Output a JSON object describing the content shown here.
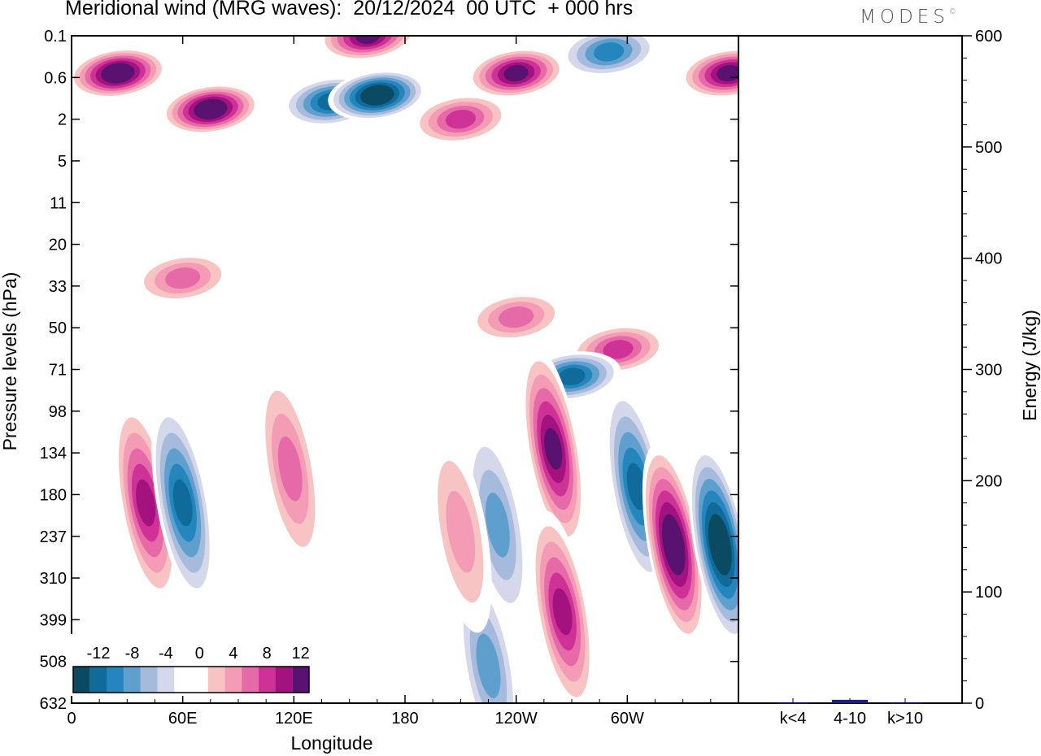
{
  "title": "Meridional wind (MRG waves):  20/12/2024  00 UTC  + 000 hrs",
  "logo": "MODES",
  "chart_data": [
    {
      "type": "heatmap",
      "title": "Meridional wind (MRG waves):  20/12/2024  00 UTC  + 000 hrs",
      "xlabel": "Longitude",
      "ylabel": "Pressure levels (hPa)",
      "x_ticks": [
        "0",
        "60E",
        "120E",
        "180",
        "120W",
        "60W"
      ],
      "y_ticks": [
        "0.1",
        "0.6",
        "2",
        "5",
        "11",
        "20",
        "33",
        "50",
        "71",
        "98",
        "134",
        "180",
        "237",
        "310",
        "399",
        "508",
        "632"
      ],
      "colorbar": {
        "labels": [
          "-12",
          "-8",
          "-4",
          "0",
          "4",
          "8",
          "12"
        ],
        "colors": [
          "#0a4a63",
          "#106a9a",
          "#2585bd",
          "#5f9fcd",
          "#a6bbdc",
          "#d5d7ea",
          "#ffffff",
          "#ffffff",
          "#f8c3c3",
          "#f49cb6",
          "#e76aa8",
          "#cf3296",
          "#a4127f",
          "#5a1270"
        ]
      },
      "features": [
        {
          "lon": 25,
          "level": 0.5,
          "value": 14
        },
        {
          "lon": 75,
          "level": 1.5,
          "value": 14
        },
        {
          "lon": 140,
          "level": 1.2,
          "value": -10
        },
        {
          "lon": 165,
          "level": 1.0,
          "value": -14
        },
        {
          "lon": 160,
          "level": 0.1,
          "value": 12
        },
        {
          "lon": 210,
          "level": 2.0,
          "value": 8
        },
        {
          "lon": 240,
          "level": 0.5,
          "value": 12
        },
        {
          "lon": 290,
          "level": 0.2,
          "value": -8
        },
        {
          "lon": 355,
          "level": 0.5,
          "value": 12
        },
        {
          "lon": 60,
          "level": 30,
          "value": 6
        },
        {
          "lon": 240,
          "level": 45,
          "value": 6
        },
        {
          "lon": 295,
          "level": 60,
          "value": 8
        },
        {
          "lon": 270,
          "level": 75,
          "value": -10
        },
        {
          "lon": 40,
          "level": 190,
          "value": 10
        },
        {
          "lon": 60,
          "level": 190,
          "value": -10
        },
        {
          "lon": 118,
          "level": 150,
          "value": 6
        },
        {
          "lon": 230,
          "level": 220,
          "value": -6
        },
        {
          "lon": 260,
          "level": 130,
          "value": 12
        },
        {
          "lon": 305,
          "level": 170,
          "value": -10
        },
        {
          "lon": 325,
          "level": 250,
          "value": 14
        },
        {
          "lon": 350,
          "level": 250,
          "value": -14
        },
        {
          "lon": 265,
          "level": 380,
          "value": 10
        },
        {
          "lon": 225,
          "level": 520,
          "value": -6
        },
        {
          "lon": 210,
          "level": 230,
          "value": 4
        }
      ]
    },
    {
      "type": "bar",
      "ylabel": "Energy (J/kg)",
      "categories": [
        "k<4",
        "4-10",
        "k>10"
      ],
      "values": [
        0.3,
        3,
        0.3
      ],
      "ylim": [
        0,
        600
      ],
      "y_ticks": [
        "0",
        "100",
        "200",
        "300",
        "400",
        "500",
        "600"
      ],
      "bar_color": "#1c1c8c"
    }
  ]
}
